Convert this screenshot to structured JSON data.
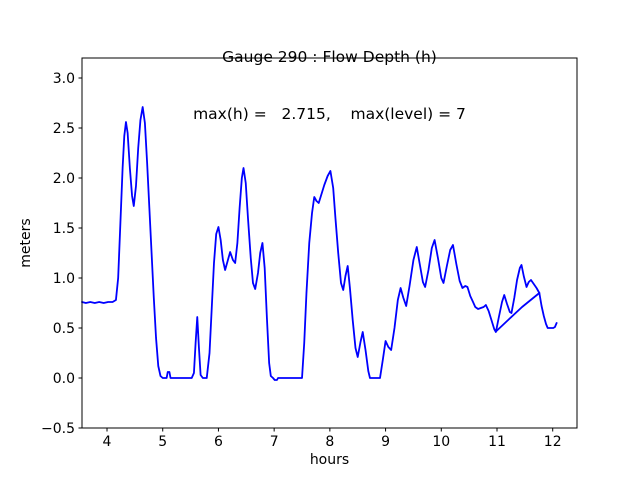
{
  "chart_data": {
    "type": "line",
    "title": "Gauge 290 : Flow Depth (h)",
    "subtitle": "max(h) =   2.715,    max(level) = 7",
    "xlabel": "hours",
    "ylabel": "meters",
    "xlim": [
      3.551,
      12.436
    ],
    "ylim": [
      -0.5,
      3.2
    ],
    "grid": false,
    "legend": "none",
    "line_color": "#0000ff",
    "line_width": 1.8,
    "axis_color": "#000000",
    "max_h": 2.715,
    "max_level": 7,
    "xticks": [
      {
        "value": 4,
        "label": "4"
      },
      {
        "value": 5,
        "label": "5"
      },
      {
        "value": 6,
        "label": "6"
      },
      {
        "value": 7,
        "label": "7"
      },
      {
        "value": 8,
        "label": "8"
      },
      {
        "value": 9,
        "label": "9"
      },
      {
        "value": 10,
        "label": "10"
      },
      {
        "value": 11,
        "label": "11"
      },
      {
        "value": 12,
        "label": "12"
      }
    ],
    "yticks": [
      {
        "value": -0.5,
        "label": "−0.5"
      },
      {
        "value": 0.0,
        "label": "0.0"
      },
      {
        "value": 0.5,
        "label": "0.5"
      },
      {
        "value": 1.0,
        "label": "1.0"
      },
      {
        "value": 1.5,
        "label": "1.5"
      },
      {
        "value": 2.0,
        "label": "2.0"
      },
      {
        "value": 2.5,
        "label": "2.5"
      },
      {
        "value": 3.0,
        "label": "3.0"
      }
    ],
    "series": [
      {
        "name": "flow-depth-h",
        "points": [
          [
            3.551,
            0.76
          ],
          [
            3.62,
            0.75
          ],
          [
            3.7,
            0.76
          ],
          [
            3.78,
            0.75
          ],
          [
            3.86,
            0.76
          ],
          [
            3.94,
            0.75
          ],
          [
            4.02,
            0.76
          ],
          [
            4.1,
            0.76
          ],
          [
            4.16,
            0.78
          ],
          [
            4.2,
            1.0
          ],
          [
            4.24,
            1.55
          ],
          [
            4.28,
            2.1
          ],
          [
            4.31,
            2.42
          ],
          [
            4.34,
            2.56
          ],
          [
            4.37,
            2.45
          ],
          [
            4.41,
            2.1
          ],
          [
            4.45,
            1.82
          ],
          [
            4.48,
            1.72
          ],
          [
            4.52,
            1.92
          ],
          [
            4.56,
            2.3
          ],
          [
            4.6,
            2.58
          ],
          [
            4.64,
            2.71
          ],
          [
            4.68,
            2.55
          ],
          [
            4.72,
            2.15
          ],
          [
            4.76,
            1.7
          ],
          [
            4.8,
            1.25
          ],
          [
            4.84,
            0.8
          ],
          [
            4.88,
            0.4
          ],
          [
            4.92,
            0.12
          ],
          [
            4.96,
            0.02
          ],
          [
            5.0,
            0.0
          ],
          [
            5.07,
            0.0
          ],
          [
            5.09,
            0.06
          ],
          [
            5.12,
            0.06
          ],
          [
            5.14,
            0.0
          ],
          [
            5.25,
            0.0
          ],
          [
            5.4,
            0.0
          ],
          [
            5.52,
            0.0
          ],
          [
            5.56,
            0.05
          ],
          [
            5.59,
            0.35
          ],
          [
            5.62,
            0.61
          ],
          [
            5.65,
            0.3
          ],
          [
            5.68,
            0.03
          ],
          [
            5.72,
            0.0
          ],
          [
            5.79,
            0.0
          ],
          [
            5.84,
            0.25
          ],
          [
            5.88,
            0.7
          ],
          [
            5.92,
            1.15
          ],
          [
            5.96,
            1.44
          ],
          [
            6.0,
            1.51
          ],
          [
            6.04,
            1.38
          ],
          [
            6.08,
            1.18
          ],
          [
            6.12,
            1.08
          ],
          [
            6.17,
            1.18
          ],
          [
            6.21,
            1.26
          ],
          [
            6.26,
            1.18
          ],
          [
            6.3,
            1.15
          ],
          [
            6.34,
            1.35
          ],
          [
            6.38,
            1.7
          ],
          [
            6.42,
            2.0
          ],
          [
            6.45,
            2.1
          ],
          [
            6.49,
            1.95
          ],
          [
            6.53,
            1.6
          ],
          [
            6.58,
            1.2
          ],
          [
            6.62,
            0.95
          ],
          [
            6.66,
            0.89
          ],
          [
            6.71,
            1.05
          ],
          [
            6.75,
            1.25
          ],
          [
            6.79,
            1.35
          ],
          [
            6.83,
            1.1
          ],
          [
            6.87,
            0.6
          ],
          [
            6.91,
            0.15
          ],
          [
            6.94,
            0.02
          ],
          [
            6.98,
            0.0
          ],
          [
            7.01,
            -0.02
          ],
          [
            7.05,
            -0.02
          ],
          [
            7.07,
            0.0
          ],
          [
            7.2,
            0.0
          ],
          [
            7.35,
            0.0
          ],
          [
            7.5,
            0.0
          ],
          [
            7.54,
            0.35
          ],
          [
            7.58,
            0.85
          ],
          [
            7.63,
            1.35
          ],
          [
            7.68,
            1.65
          ],
          [
            7.72,
            1.81
          ],
          [
            7.76,
            1.77
          ],
          [
            7.8,
            1.75
          ],
          [
            7.85,
            1.84
          ],
          [
            7.9,
            1.93
          ],
          [
            7.96,
            2.02
          ],
          [
            8.01,
            2.07
          ],
          [
            8.06,
            1.9
          ],
          [
            8.1,
            1.6
          ],
          [
            8.15,
            1.25
          ],
          [
            8.2,
            0.95
          ],
          [
            8.24,
            0.88
          ],
          [
            8.28,
            1.02
          ],
          [
            8.32,
            1.12
          ],
          [
            8.36,
            0.9
          ],
          [
            8.41,
            0.58
          ],
          [
            8.46,
            0.3
          ],
          [
            8.5,
            0.21
          ],
          [
            8.55,
            0.36
          ],
          [
            8.59,
            0.46
          ],
          [
            8.64,
            0.28
          ],
          [
            8.69,
            0.07
          ],
          [
            8.72,
            0.0
          ],
          [
            8.8,
            0.0
          ],
          [
            8.9,
            0.0
          ],
          [
            8.95,
            0.18
          ],
          [
            9.0,
            0.37
          ],
          [
            9.05,
            0.31
          ],
          [
            9.1,
            0.28
          ],
          [
            9.16,
            0.5
          ],
          [
            9.22,
            0.78
          ],
          [
            9.27,
            0.9
          ],
          [
            9.32,
            0.8
          ],
          [
            9.37,
            0.72
          ],
          [
            9.43,
            0.92
          ],
          [
            9.5,
            1.18
          ],
          [
            9.56,
            1.31
          ],
          [
            9.61,
            1.15
          ],
          [
            9.67,
            0.96
          ],
          [
            9.71,
            0.91
          ],
          [
            9.77,
            1.08
          ],
          [
            9.83,
            1.3
          ],
          [
            9.88,
            1.38
          ],
          [
            9.94,
            1.2
          ],
          [
            10.0,
            1.0
          ],
          [
            10.04,
            0.95
          ],
          [
            10.1,
            1.12
          ],
          [
            10.16,
            1.28
          ],
          [
            10.21,
            1.33
          ],
          [
            10.27,
            1.14
          ],
          [
            10.33,
            0.97
          ],
          [
            10.38,
            0.9
          ],
          [
            10.43,
            0.92
          ],
          [
            10.47,
            0.91
          ],
          [
            10.52,
            0.82
          ],
          [
            10.57,
            0.76
          ],
          [
            10.61,
            0.71
          ],
          [
            10.66,
            0.69
          ],
          [
            10.71,
            0.7
          ],
          [
            10.76,
            0.71
          ],
          [
            10.8,
            0.73
          ],
          [
            10.85,
            0.67
          ],
          [
            10.9,
            0.58
          ],
          [
            10.95,
            0.49
          ],
          [
            10.98,
            0.46
          ],
          [
            11.03,
            0.6
          ],
          [
            11.09,
            0.76
          ],
          [
            11.13,
            0.83
          ],
          [
            11.18,
            0.74
          ],
          [
            11.23,
            0.66
          ],
          [
            11.26,
            0.65
          ],
          [
            11.31,
            0.8
          ],
          [
            11.36,
            0.98
          ],
          [
            11.41,
            1.1
          ],
          [
            11.44,
            1.13
          ],
          [
            11.48,
            1.02
          ],
          [
            11.53,
            0.91
          ],
          [
            11.57,
            0.96
          ],
          [
            11.61,
            0.98
          ],
          [
            11.66,
            0.94
          ],
          [
            11.71,
            0.9
          ],
          [
            11.76,
            0.85
          ],
          [
            11.8,
            0.72
          ],
          [
            11.84,
            0.62
          ],
          [
            11.88,
            0.54
          ],
          [
            11.91,
            0.5
          ],
          [
            11.96,
            0.5
          ],
          [
            12.01,
            0.5
          ],
          [
            12.04,
            0.51
          ],
          [
            12.07,
            0.55
          ]
        ]
      },
      {
        "name": "flow-depth-h-overlap-segment",
        "points": [
          [
            10.99,
            0.47
          ],
          [
            11.2,
            0.58
          ],
          [
            11.45,
            0.71
          ],
          [
            11.76,
            0.85
          ]
        ]
      }
    ]
  }
}
